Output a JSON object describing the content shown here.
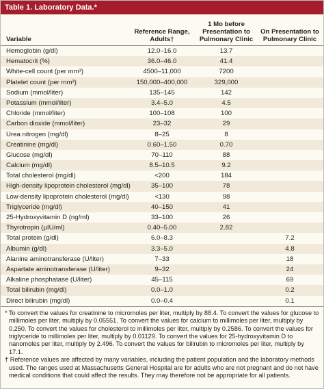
{
  "header": {
    "title": "Table 1. Laboratory Data.*"
  },
  "table": {
    "columns": [
      "Variable",
      "Reference Range, Adults†",
      "1 Mo before Presentation to Pulmonary Clinic",
      "On Presentation to Pulmonary Clinic"
    ],
    "rows": [
      [
        "Hemoglobin (g/dl)",
        "12.0–16.0",
        "13.7",
        null
      ],
      [
        "Hematocrit (%)",
        "36.0–46.0",
        "41.4",
        null
      ],
      [
        "White-cell count (per mm³)",
        "4500–11,000",
        "7200",
        null
      ],
      [
        "Platelet count (per mm³)",
        "150,000–400,000",
        "329,000",
        null
      ],
      [
        "Sodium (mmol/liter)",
        "135–145",
        "142",
        null
      ],
      [
        "Potassium (mmol/liter)",
        "3.4–5.0",
        "4.5",
        null
      ],
      [
        "Chloride (mmol/liter)",
        "100–108",
        "100",
        null
      ],
      [
        "Carbon dioxide (mmol/liter)",
        "23–32",
        "29",
        null
      ],
      [
        "Urea nitrogen (mg/dl)",
        "8–25",
        "8",
        null
      ],
      [
        "Creatinine (mg/dl)",
        "0.60–1.50",
        "0.70",
        null
      ],
      [
        "Glucose (mg/dl)",
        "70–110",
        "88",
        null
      ],
      [
        "Calcium (mg/dl)",
        "8.5–10.5",
        "9.2",
        null
      ],
      [
        "Total cholesterol (mg/dl)",
        "<200",
        "184",
        null
      ],
      [
        "High-density lipoprotein cholesterol (mg/dl)",
        "35–100",
        "78",
        null
      ],
      [
        "Low-density lipoprotein cholesterol (mg/dl)",
        "<130",
        "98",
        null
      ],
      [
        "Triglyceride (mg/dl)",
        "40–150",
        "41",
        null
      ],
      [
        "25-Hydroxyvitamin D (ng/ml)",
        "33–100",
        "26",
        null
      ],
      [
        "Thyrotropin (μIU/ml)",
        "0.40–5.00",
        "2.82",
        null
      ],
      [
        "Total protein (g/dl)",
        "6.0–8.3",
        null,
        "7.2"
      ],
      [
        "Albumin (g/dl)",
        "3.3–5.0",
        null,
        "4.8"
      ],
      [
        "Alanine aminotransferase (U/liter)",
        "7–33",
        null,
        "18"
      ],
      [
        "Aspartate aminotransferase (U/liter)",
        "9–32",
        null,
        "24"
      ],
      [
        "Alkaline phosphatase (U/liter)",
        "45–115",
        null,
        "69"
      ],
      [
        "Total bilirubin (mg/dl)",
        "0.0–1.0",
        null,
        "0.2"
      ],
      [
        "Direct bilirubin (mg/dl)",
        "0.0–0.4",
        null,
        "0.1"
      ]
    ]
  },
  "footnotes": [
    {
      "mark": "*",
      "text": "To convert the values for creatinine to micromoles per liter, multiply by 88.4. To convert the values for glucose to millimoles per liter, multiply by 0.05551. To convert the values for calcium to millimoles per liter, multiply by 0.250. To convert the values for cholesterol to millimoles per liter, multiply by 0.2586. To convert the values for triglyceride to millimoles per liter, multiply by 0.01129. To convert the values for 25-hydroxyvitamin D to nanomoles per liter, multiply by 2.496. To convert the values for bilirubin to micromoles per liter, multiply by 17.1."
    },
    {
      "mark": "†",
      "text": "Reference values are affected by many variables, including the patient population and the laboratory methods used. The ranges used at Massachusetts General Hospital are for adults who are not pregnant and do not have medical conditions that could affect the results. They may therefore not be appropriate for all patients."
    }
  ]
}
